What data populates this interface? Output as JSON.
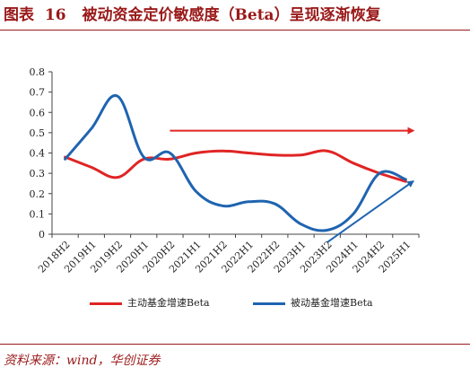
{
  "figure": {
    "label": "图表",
    "number": "16",
    "title": "被动资金定价敏感度（Beta）呈现逐渐恢复",
    "source": "资料来源：wind，华创证券"
  },
  "colors": {
    "title": "#9a1919",
    "active_series": "#e02424",
    "passive_series": "#1f64b0"
  },
  "chart_data": {
    "type": "line",
    "categories": [
      "2018H2",
      "2019H1",
      "2019H2",
      "2020H1",
      "2020H2",
      "2021H1",
      "2021H2",
      "2022H1",
      "2022H2",
      "2023H1",
      "2023H2",
      "2024H1",
      "2024H2",
      "2025H1"
    ],
    "ylim": [
      0,
      0.8
    ],
    "yticks": [
      "0",
      "0.1",
      "0.2",
      "0.3",
      "0.4",
      "0.5",
      "0.6",
      "0.7",
      "0.8"
    ],
    "grid": false,
    "legend_position": "bottom",
    "series": [
      {
        "name": "主动基金增速Beta",
        "color": "#e02424",
        "values": [
          0.38,
          0.33,
          0.28,
          0.37,
          0.37,
          0.4,
          0.41,
          0.4,
          0.39,
          0.39,
          0.41,
          0.35,
          0.3,
          0.26
        ]
      },
      {
        "name": "被动基金增速Beta",
        "color": "#1f64b0",
        "values": [
          0.37,
          0.52,
          0.68,
          0.38,
          0.4,
          0.21,
          0.14,
          0.16,
          0.15,
          0.05,
          0.02,
          0.1,
          0.3,
          0.27
        ]
      }
    ],
    "annotations": [
      {
        "type": "arrow",
        "color": "#e02424",
        "from": {
          "x": "2020H2",
          "y": 0.51
        },
        "to": {
          "x": "2025H1",
          "y": 0.51
        }
      },
      {
        "type": "arrow",
        "color": "#1f64b0",
        "from": {
          "x": "2023H2",
          "y": -0.04
        },
        "to": {
          "x": "2025H1",
          "y": 0.26
        }
      }
    ]
  }
}
